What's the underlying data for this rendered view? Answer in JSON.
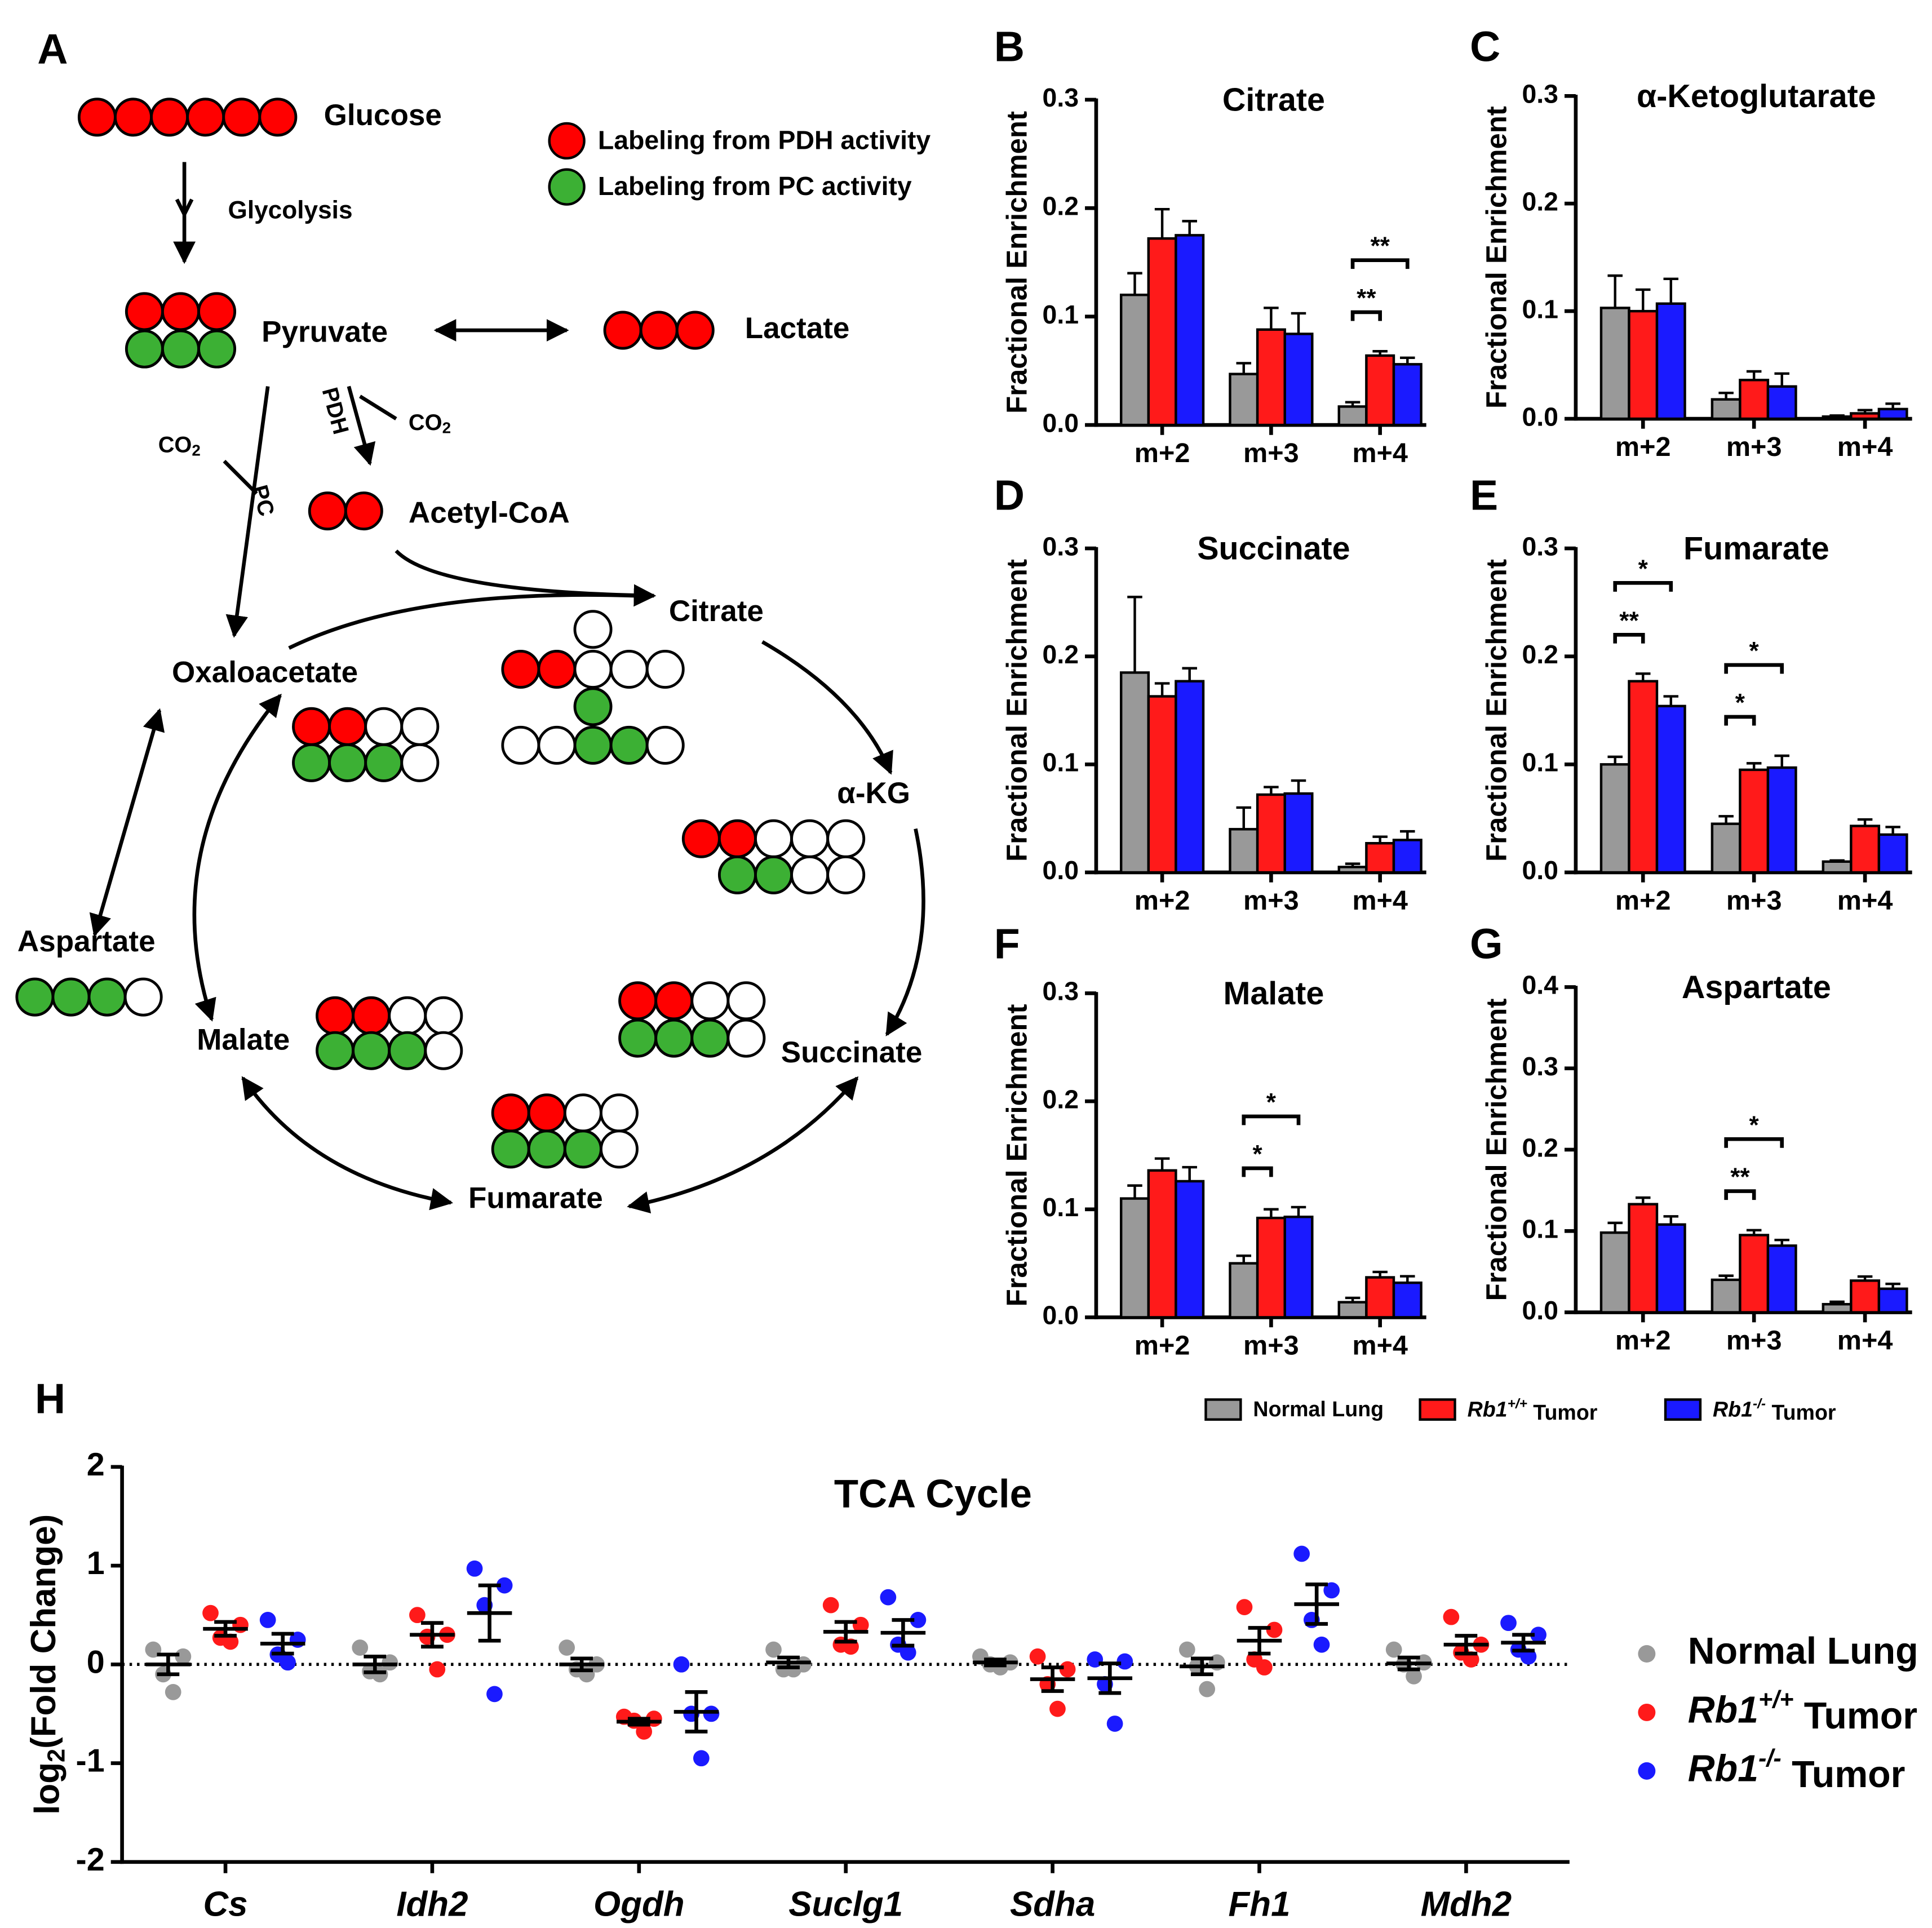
{
  "diagram": {
    "label": "A",
    "nodes": [
      "Glucose",
      "Pyruvate",
      "Lactate",
      "Acetyl-CoA",
      "Citrate",
      "α-KG",
      "Succinate",
      "Fumarate",
      "Malate",
      "Oxaloacetate",
      "Aspartate"
    ],
    "edges": [
      "Glycolysis",
      "PDH",
      "PC",
      "CO2",
      "CO2"
    ],
    "legend": [
      "Labeling from PDH activity",
      "Labeling from PC activity"
    ]
  },
  "chart_data": [
    {
      "type": "bar",
      "label": "B",
      "title": "Citrate",
      "y_label": "Fractional Enrichment",
      "categories": [
        "m+2",
        "m+3",
        "m+4"
      ],
      "series": [
        {
          "name": "Normal Lung",
          "color": "#999999",
          "values": [
            0.12,
            0.047,
            0.017
          ],
          "errors": [
            0.02,
            0.01,
            0.004
          ]
        },
        {
          "name": "Rb1+/+ Tumor",
          "color": "#ff1a1a",
          "values": [
            0.172,
            0.088,
            0.064
          ],
          "errors": [
            0.027,
            0.02,
            0.004
          ]
        },
        {
          "name": "Rb1-/- Tumor",
          "color": "#1a1aff",
          "values": [
            0.175,
            0.084,
            0.056
          ],
          "errors": [
            0.013,
            0.019,
            0.006
          ]
        }
      ],
      "ylim": [
        0,
        0.3
      ],
      "yticks": [
        {
          "value": 0,
          "label": "0.0"
        },
        0.1,
        0.2,
        0.3
      ],
      "legend": "bottom",
      "annotations": [
        {
          "text": "**",
          "category": 2,
          "from": 0,
          "to": 1
        },
        {
          "text": "**",
          "category": 2,
          "from": 0,
          "to": 2
        }
      ]
    },
    {
      "type": "bar",
      "label": "C",
      "title": "α-Ketoglutarate",
      "y_label": "Fractional Enrichment",
      "categories": [
        "m+2",
        "m+3",
        "m+4"
      ],
      "series": [
        {
          "color": "#999999",
          "values": [
            0.103,
            0.018,
            0.002
          ],
          "errors": [
            0.03,
            0.006,
            0.001
          ]
        },
        {
          "color": "#ff1a1a",
          "values": [
            0.1,
            0.036,
            0.005
          ],
          "errors": [
            0.02,
            0.008,
            0.003
          ]
        },
        {
          "color": "#1a1aff",
          "values": [
            0.107,
            0.03,
            0.009
          ],
          "errors": [
            0.023,
            0.012,
            0.005
          ]
        }
      ],
      "ylim": [
        0,
        0.3
      ],
      "yticks": [
        {
          "value": 0,
          "label": "0.0"
        },
        0.1,
        0.2,
        0.3
      ],
      "annotations": []
    },
    {
      "type": "bar",
      "label": "D",
      "title": "Succinate",
      "y_label": "Fractional Enrichment",
      "categories": [
        "m+2",
        "m+3",
        "m+4"
      ],
      "series": [
        {
          "color": "#999999",
          "values": [
            0.185,
            0.04,
            0.005
          ],
          "errors": [
            0.07,
            0.02,
            0.003
          ]
        },
        {
          "color": "#ff1a1a",
          "values": [
            0.163,
            0.072,
            0.027
          ],
          "errors": [
            0.012,
            0.007,
            0.006
          ]
        },
        {
          "color": "#1a1aff",
          "values": [
            0.177,
            0.073,
            0.03
          ],
          "errors": [
            0.012,
            0.012,
            0.008
          ]
        }
      ],
      "ylim": [
        0,
        0.3
      ],
      "yticks": [
        {
          "value": 0,
          "label": "0.0"
        },
        0.1,
        0.2,
        0.3
      ],
      "annotations": []
    },
    {
      "type": "bar",
      "label": "E",
      "title": "Fumarate",
      "y_label": "Fractional Enrichment",
      "categories": [
        "m+2",
        "m+3",
        "m+4"
      ],
      "series": [
        {
          "color": "#999999",
          "values": [
            0.1,
            0.045,
            0.01
          ],
          "errors": [
            0.007,
            0.007,
            0.001
          ]
        },
        {
          "color": "#ff1a1a",
          "values": [
            0.177,
            0.095,
            0.043
          ],
          "errors": [
            0.007,
            0.006,
            0.006
          ]
        },
        {
          "color": "#1a1aff",
          "values": [
            0.154,
            0.097,
            0.035
          ],
          "errors": [
            0.009,
            0.011,
            0.007
          ]
        }
      ],
      "ylim": [
        0,
        0.3
      ],
      "yticks": [
        {
          "value": 0,
          "label": "0.0"
        },
        0.1,
        0.2,
        0.3
      ],
      "annotations": [
        {
          "text": "**",
          "category": 0,
          "from": 0,
          "to": 1
        },
        {
          "text": "*",
          "category": 0,
          "from": 0,
          "to": 2
        },
        {
          "text": "*",
          "category": 1,
          "from": 0,
          "to": 1
        },
        {
          "text": "*",
          "category": 1,
          "from": 0,
          "to": 2
        }
      ]
    },
    {
      "type": "bar",
      "label": "F",
      "title": "Malate",
      "y_label": "Fractional Enrichment",
      "categories": [
        "m+2",
        "m+3",
        "m+4"
      ],
      "series": [
        {
          "color": "#999999",
          "values": [
            0.11,
            0.05,
            0.014
          ],
          "errors": [
            0.012,
            0.007,
            0.004
          ]
        },
        {
          "color": "#ff1a1a",
          "values": [
            0.136,
            0.092,
            0.037
          ],
          "errors": [
            0.011,
            0.008,
            0.005
          ]
        },
        {
          "color": "#1a1aff",
          "values": [
            0.126,
            0.093,
            0.032
          ],
          "errors": [
            0.013,
            0.009,
            0.006
          ]
        }
      ],
      "ylim": [
        0,
        0.3
      ],
      "yticks": [
        {
          "value": 0,
          "label": "0.0"
        },
        0.1,
        0.2,
        0.3
      ],
      "annotations": [
        {
          "text": "*",
          "category": 1,
          "from": 0,
          "to": 1
        },
        {
          "text": "*",
          "category": 1,
          "from": 0,
          "to": 2
        }
      ]
    },
    {
      "type": "bar",
      "label": "G",
      "title": "Aspartate",
      "y_label": "Fractional Enrichment",
      "categories": [
        "m+2",
        "m+3",
        "m+4"
      ],
      "series": [
        {
          "color": "#999999",
          "values": [
            0.098,
            0.04,
            0.01
          ],
          "errors": [
            0.012,
            0.005,
            0.003
          ]
        },
        {
          "color": "#ff1a1a",
          "values": [
            0.133,
            0.095,
            0.039
          ],
          "errors": [
            0.008,
            0.006,
            0.005
          ]
        },
        {
          "color": "#1a1aff",
          "values": [
            0.108,
            0.082,
            0.029
          ],
          "errors": [
            0.01,
            0.007,
            0.006
          ]
        }
      ],
      "ylim": [
        0,
        0.4
      ],
      "yticks": [
        {
          "value": 0,
          "label": "0.0"
        },
        0.1,
        0.2,
        0.3,
        0.4
      ],
      "annotations": [
        {
          "text": "**",
          "category": 1,
          "from": 0,
          "to": 1
        },
        {
          "text": "*",
          "category": 1,
          "from": 0,
          "to": 2
        }
      ]
    },
    {
      "type": "strip",
      "label": "H",
      "title": "TCA Cycle",
      "y_label": "log2(Fold Change)",
      "categories": [
        "Cs",
        "Idh2",
        "Ogdh",
        "Suclg1",
        "Sdha",
        "Fh1",
        "Mdh2"
      ],
      "series": [
        {
          "name": "Normal Lung",
          "color": "#999999",
          "values": [
            [
              0.15,
              0.08,
              -0.1,
              -0.28
            ],
            [
              0.17,
              0.02,
              -0.07,
              -0.1
            ],
            [
              0.17,
              0,
              -0.05,
              -0.1
            ],
            [
              0.15,
              0,
              -0.05,
              -0.05
            ],
            [
              0.08,
              0.02,
              0,
              -0.03
            ],
            [
              0.15,
              0.02,
              -0.02,
              -0.25
            ],
            [
              0.15,
              0.02,
              0,
              -0.12
            ]
          ],
          "means": [
            0,
            0,
            0,
            0.02,
            0.02,
            -0.02,
            0.01
          ],
          "errors": [
            0.1,
            0.08,
            0.06,
            0.05,
            0.03,
            0.08,
            0.06
          ]
        },
        {
          "name": "Rb1+/+ Tumor",
          "color": "#ff1a1a",
          "values": [
            [
              0.52,
              0.4,
              0.27,
              0.23
            ],
            [
              0.5,
              0.3,
              0.28,
              -0.05
            ],
            [
              -0.53,
              -0.55,
              -0.57,
              -0.68
            ],
            [
              0.6,
              0.4,
              0.2,
              0.18
            ],
            [
              0.08,
              -0.05,
              -0.2,
              -0.45
            ],
            [
              0.58,
              0.35,
              0.05,
              -0.03
            ],
            [
              0.48,
              0.2,
              0.12,
              0.05
            ]
          ],
          "means": [
            0.36,
            0.3,
            -0.58,
            0.33,
            -0.15,
            0.24,
            0.2
          ],
          "errors": [
            0.07,
            0.12,
            0.03,
            0.1,
            0.12,
            0.13,
            0.09
          ]
        },
        {
          "name": "Rb1-/- Tumor",
          "color": "#1a1aff",
          "values": [
            [
              0.45,
              0.25,
              0.1,
              0.02
            ],
            [
              0.97,
              0.8,
              0.6,
              -0.3
            ],
            [
              0,
              -0.5,
              -0.5,
              -0.95
            ],
            [
              0.68,
              0.45,
              0.2,
              0.12
            ],
            [
              0.05,
              0.03,
              -0.2,
              -0.6
            ],
            [
              1.12,
              0.75,
              0.45,
              0.2
            ],
            [
              0.42,
              0.3,
              0.15,
              0.08
            ]
          ],
          "means": [
            0.21,
            0.52,
            -0.48,
            0.32,
            -0.14,
            0.61,
            0.22
          ],
          "errors": [
            0.1,
            0.28,
            0.2,
            0.13,
            0.15,
            0.2,
            0.08
          ]
        }
      ],
      "ylim": [
        -2,
        2
      ],
      "yticks": [
        -2,
        -1,
        0,
        1,
        2
      ],
      "reference_line": 0,
      "legend": "right"
    }
  ]
}
